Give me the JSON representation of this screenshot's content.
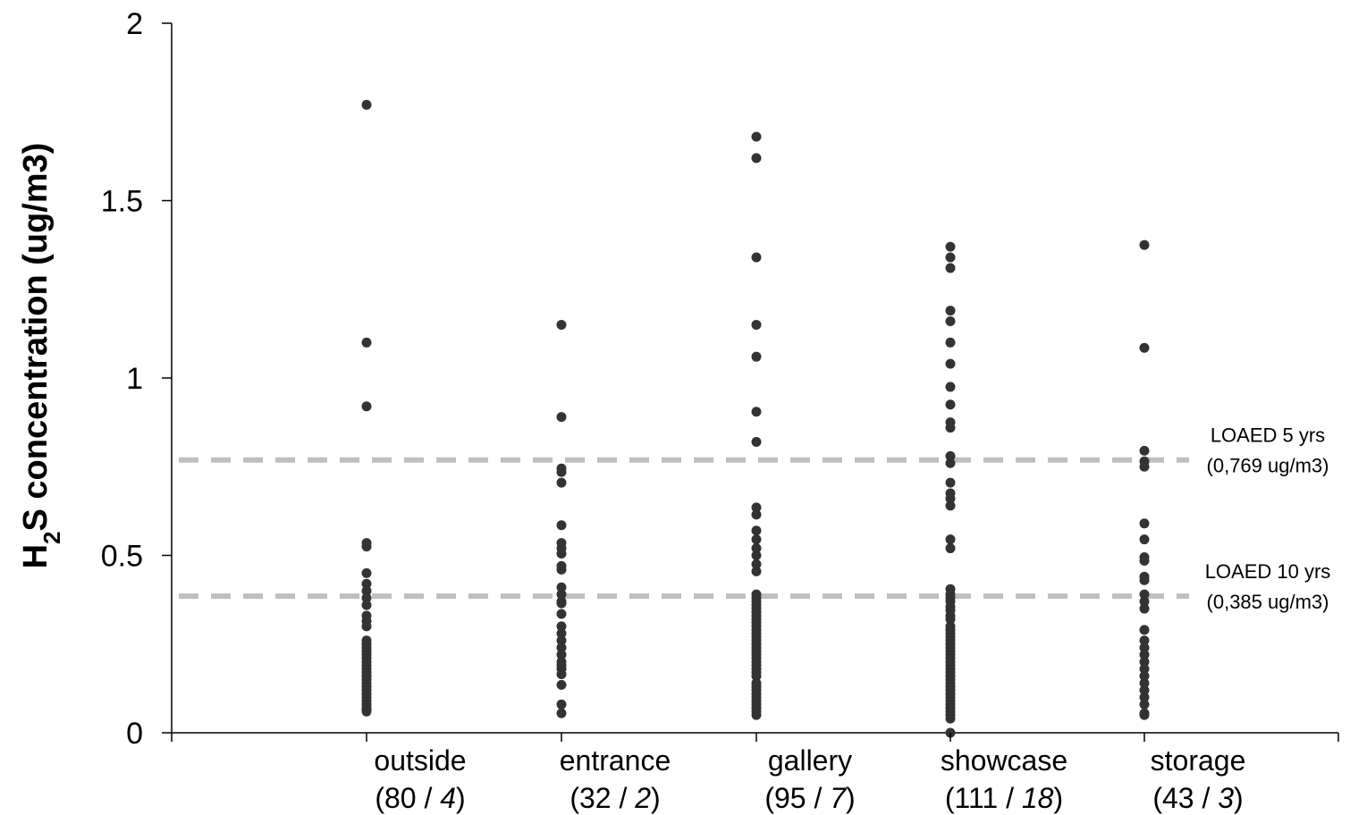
{
  "chart_data": {
    "type": "scatter",
    "ylabel_prefix": "H",
    "ylabel_subscript": "2",
    "ylabel_suffix": "S concentration (ug/m3)",
    "ylim": [
      0,
      2
    ],
    "yticks": [
      "0",
      "0.5",
      "1",
      "1.5",
      "2"
    ],
    "grid": false,
    "colors": {
      "points": "#333333",
      "reference": "#bfbfbf",
      "axis": "#000000"
    },
    "categories": [
      {
        "name": "outside",
        "n_total": "80",
        "n_above": "4",
        "values": [
          1.77,
          1.1,
          0.92,
          0.535,
          0.525,
          0.45,
          0.42,
          0.4,
          0.38,
          0.36,
          0.33,
          0.315,
          0.3,
          0.26,
          0.25,
          0.24,
          0.23,
          0.22,
          0.21,
          0.2,
          0.19,
          0.18,
          0.17,
          0.16,
          0.15,
          0.14,
          0.13,
          0.12,
          0.11,
          0.1,
          0.09,
          0.08,
          0.07,
          0.065,
          0.06
        ]
      },
      {
        "name": "entrance",
        "n_total": "32",
        "n_above": "2",
        "values": [
          1.15,
          0.89,
          0.745,
          0.735,
          0.705,
          0.585,
          0.535,
          0.52,
          0.505,
          0.47,
          0.46,
          0.41,
          0.39,
          0.37,
          0.365,
          0.335,
          0.3,
          0.28,
          0.26,
          0.24,
          0.22,
          0.2,
          0.19,
          0.18,
          0.165,
          0.135,
          0.08,
          0.055
        ]
      },
      {
        "name": "gallery",
        "n_total": "95",
        "n_above": "7",
        "values": [
          1.68,
          1.62,
          1.34,
          1.15,
          1.06,
          0.905,
          0.82,
          0.635,
          0.615,
          0.57,
          0.545,
          0.52,
          0.5,
          0.475,
          0.455,
          0.39,
          0.38,
          0.37,
          0.36,
          0.35,
          0.34,
          0.33,
          0.32,
          0.31,
          0.3,
          0.29,
          0.28,
          0.27,
          0.26,
          0.25,
          0.24,
          0.23,
          0.22,
          0.21,
          0.2,
          0.19,
          0.18,
          0.17,
          0.16,
          0.14,
          0.13,
          0.12,
          0.11,
          0.1,
          0.09,
          0.08,
          0.07,
          0.06,
          0.05
        ]
      },
      {
        "name": "showcase",
        "n_total": "111",
        "n_above": "18",
        "values": [
          1.37,
          1.34,
          1.31,
          1.19,
          1.16,
          1.1,
          1.04,
          0.975,
          0.925,
          0.875,
          0.86,
          0.78,
          0.76,
          0.705,
          0.675,
          0.66,
          0.64,
          0.545,
          0.52,
          0.405,
          0.39,
          0.38,
          0.37,
          0.355,
          0.345,
          0.33,
          0.32,
          0.3,
          0.29,
          0.28,
          0.27,
          0.26,
          0.25,
          0.24,
          0.23,
          0.22,
          0.21,
          0.2,
          0.19,
          0.18,
          0.17,
          0.16,
          0.15,
          0.14,
          0.13,
          0.12,
          0.11,
          0.1,
          0.09,
          0.08,
          0.07,
          0.06,
          0.05,
          0.04,
          0.0
        ]
      },
      {
        "name": "storage",
        "n_total": "43",
        "n_above": "3",
        "values": [
          1.375,
          1.085,
          0.795,
          0.765,
          0.75,
          0.59,
          0.545,
          0.495,
          0.485,
          0.44,
          0.43,
          0.39,
          0.37,
          0.35,
          0.29,
          0.26,
          0.24,
          0.22,
          0.2,
          0.18,
          0.16,
          0.14,
          0.12,
          0.1,
          0.08,
          0.055,
          0.05
        ]
      }
    ],
    "reference_lines": [
      {
        "value": 0.769,
        "label_line1": "LOAED 5 yrs",
        "label_line2": "(0,769 ug/m3)"
      },
      {
        "value": 0.385,
        "label_line1": "LOAED 10 yrs",
        "label_line2": "(0,385 ug/m3)"
      }
    ]
  }
}
